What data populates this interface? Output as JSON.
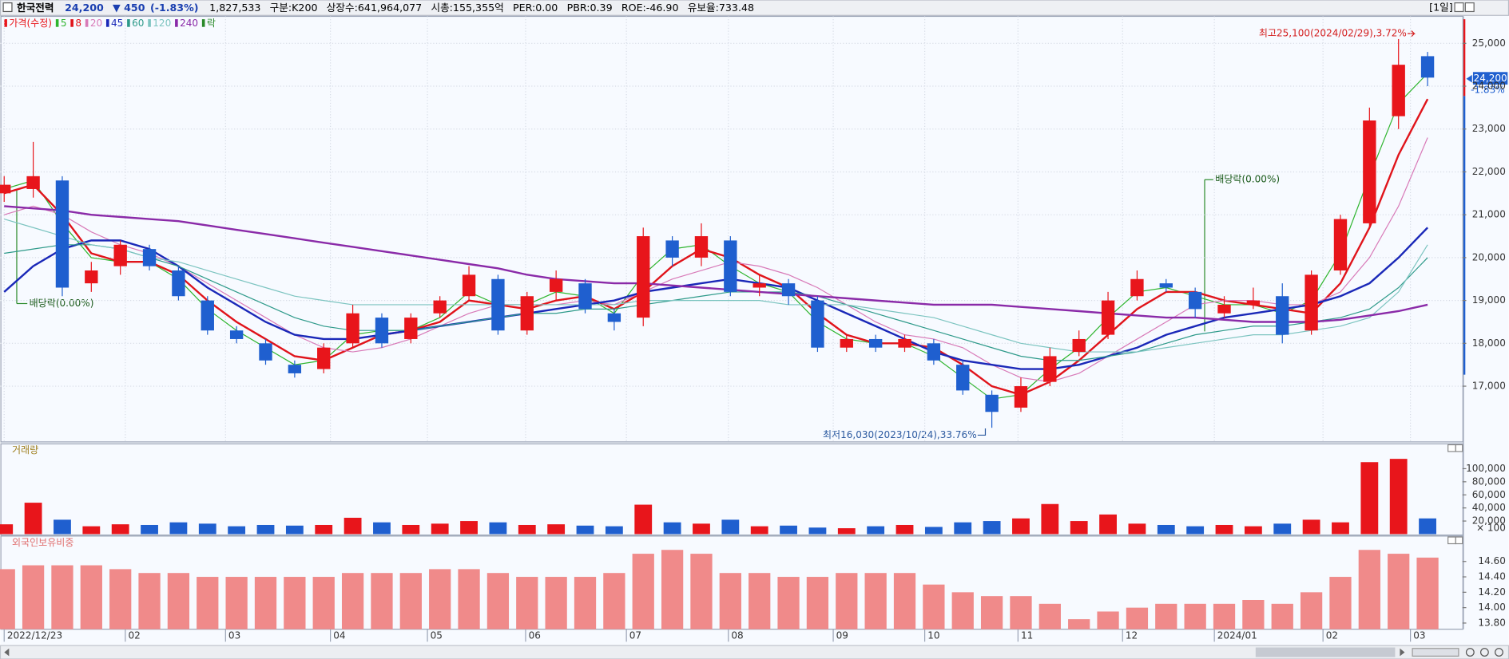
{
  "header": {
    "name": "한국전력",
    "price": "24,200",
    "change": "▼ 450",
    "change_pct": "(-1.83%)",
    "volume": "1,827,533",
    "segment": "구분:K200",
    "shares": "상장수:641,964,077",
    "market_cap": "시총:155,355억",
    "per": "PER:0.00",
    "pbr": "PBR:0.39",
    "roe": "ROE:-46.90",
    "reserve": "유보율:733.48",
    "period": "[1일]",
    "price_tag": "24,200",
    "price_tag_pct": "-1.83%"
  },
  "chart_data": [
    {
      "type": "candlestick",
      "x": [
        0,
        1,
        2,
        3,
        4,
        5,
        6,
        7,
        8,
        9,
        10,
        11,
        12,
        13,
        14,
        15,
        16,
        17,
        18,
        19,
        20,
        21,
        22,
        23,
        24,
        25,
        26,
        27,
        28,
        29,
        30,
        31,
        32,
        33,
        34,
        35,
        36,
        37,
        38,
        39,
        40,
        41,
        42,
        43,
        44,
        45,
        46,
        47,
        48,
        49
      ],
      "xlim": [
        -0.13,
        50.2
      ],
      "xticks": [
        {
          "value": 0,
          "label": "2022/12/23"
        },
        {
          "value": 4.17,
          "label": "02"
        },
        {
          "value": 7.62,
          "label": "03"
        },
        {
          "value": 11.23,
          "label": "04"
        },
        {
          "value": 14.57,
          "label": "05"
        },
        {
          "value": 17.95,
          "label": "06"
        },
        {
          "value": 21.42,
          "label": "07"
        },
        {
          "value": 24.93,
          "label": "08"
        },
        {
          "value": 28.54,
          "label": "09"
        },
        {
          "value": 31.69,
          "label": "10"
        },
        {
          "value": 34.9,
          "label": "11"
        },
        {
          "value": 38.5,
          "label": "12"
        },
        {
          "value": 41.66,
          "label": "2024/01"
        },
        {
          "value": 45.4,
          "label": "02"
        },
        {
          "value": 48.41,
          "label": "03"
        }
      ],
      "ylim": [
        15700,
        25630
      ],
      "yticks": [
        {
          "value": 17000,
          "label": "17,000"
        },
        {
          "value": 18000,
          "label": "18,000"
        },
        {
          "value": 19000,
          "label": "19,000"
        },
        {
          "value": 20000,
          "label": "20,000"
        },
        {
          "value": 21000,
          "label": "21,000"
        },
        {
          "value": 22000,
          "label": "22,000"
        },
        {
          "value": 23000,
          "label": "23,000"
        },
        {
          "value": 24000,
          "label": "24,000"
        },
        {
          "value": 25000,
          "label": "25,000"
        }
      ],
      "grid": true,
      "candles": {
        "name": "가격(수정)",
        "up_color": "#e8151b",
        "down_color": "#1f5fcf",
        "open": [
          21500,
          21600,
          21800,
          19400,
          19800,
          20200,
          19700,
          19000,
          18300,
          18000,
          17500,
          17400,
          18000,
          18600,
          18100,
          18700,
          19100,
          19500,
          18300,
          19200,
          19400,
          18700,
          18600,
          20400,
          20000,
          20400,
          19300,
          19400,
          19000,
          17900,
          18100,
          17900,
          18000,
          17500,
          16800,
          16500,
          17100,
          17800,
          18200,
          19100,
          19400,
          19200,
          18700,
          18900,
          19100,
          18300,
          19700,
          20800,
          23300,
          24700
        ],
        "high": [
          21900,
          22700,
          21900,
          19900,
          20400,
          20300,
          19800,
          19100,
          18400,
          18100,
          17600,
          18000,
          18900,
          18700,
          18700,
          19100,
          19800,
          19600,
          19200,
          19700,
          19500,
          18800,
          20700,
          20500,
          20800,
          20500,
          19600,
          19500,
          19100,
          18200,
          18200,
          18200,
          18100,
          17600,
          16900,
          17200,
          17900,
          18300,
          19200,
          19700,
          19500,
          19300,
          19100,
          19300,
          19400,
          19700,
          21000,
          23500,
          25100,
          24800
        ],
        "low": [
          21300,
          21400,
          19100,
          19200,
          19600,
          19700,
          19000,
          18200,
          18000,
          17500,
          17200,
          17300,
          17900,
          17900,
          18000,
          18600,
          19000,
          18200,
          18200,
          19000,
          18700,
          18300,
          18400,
          19800,
          19800,
          19100,
          19100,
          18900,
          17800,
          17800,
          17800,
          17800,
          17500,
          16800,
          16030,
          16400,
          17000,
          17700,
          18100,
          19000,
          19200,
          18600,
          18600,
          18800,
          18000,
          18200,
          19600,
          20700,
          23000,
          24000
        ],
        "close": [
          21700,
          21900,
          19300,
          19700,
          20300,
          19800,
          19100,
          18300,
          18100,
          17600,
          17300,
          17900,
          18700,
          18000,
          18600,
          19000,
          19600,
          18300,
          19100,
          19500,
          18800,
          18500,
          20500,
          20000,
          20500,
          19200,
          19400,
          19100,
          17900,
          18100,
          17900,
          18100,
          17600,
          16900,
          16400,
          17000,
          17700,
          18100,
          19000,
          19500,
          19300,
          18800,
          18900,
          19000,
          18200,
          19600,
          20900,
          23200,
          24500,
          24200
        ]
      },
      "series": [
        {
          "name": "5",
          "color": "#2fb52f",
          "values": [
            21600,
            21800,
            20800,
            20000,
            19900,
            19900,
            19500,
            18800,
            18300,
            17900,
            17500,
            17600,
            18200,
            18300,
            18300,
            18600,
            19200,
            18900,
            18900,
            19200,
            19100,
            18700,
            19600,
            20200,
            20300,
            19800,
            19400,
            19200,
            18500,
            18100,
            18000,
            18000,
            17700,
            17200,
            16700,
            16800,
            17400,
            17900,
            18600,
            19200,
            19300,
            19100,
            18900,
            18900,
            18700,
            19000,
            20100,
            21900,
            23600,
            24300
          ]
        },
        {
          "name": "8",
          "color": "#e0141b",
          "values": [
            21500,
            21700,
            21000,
            20100,
            19900,
            19900,
            19600,
            19000,
            18500,
            18100,
            17700,
            17600,
            17900,
            18200,
            18300,
            18500,
            19000,
            18900,
            18800,
            19000,
            19100,
            18800,
            19200,
            19800,
            20200,
            20000,
            19600,
            19300,
            18700,
            18200,
            18000,
            18000,
            17900,
            17500,
            17000,
            16800,
            17100,
            17600,
            18200,
            18800,
            19200,
            19200,
            19000,
            18900,
            18800,
            18700,
            19400,
            20700,
            22400,
            23700
          ]
        },
        {
          "name": "20",
          "color": "#d87ab8",
          "values": [
            21000,
            21200,
            21000,
            20600,
            20300,
            20100,
            19800,
            19400,
            19000,
            18600,
            18200,
            17900,
            17800,
            17900,
            18100,
            18400,
            18700,
            18900,
            18900,
            18900,
            19000,
            18900,
            19200,
            19500,
            19700,
            19900,
            19800,
            19600,
            19300,
            18900,
            18500,
            18200,
            18100,
            17900,
            17500,
            17200,
            17100,
            17300,
            17700,
            18100,
            18500,
            18900,
            19000,
            19000,
            18900,
            18900,
            19200,
            20000,
            21200,
            22800
          ]
        },
        {
          "name": "45",
          "color": "#1a28b8",
          "values": [
            19200,
            19800,
            20200,
            20400,
            20400,
            20200,
            19800,
            19300,
            18900,
            18500,
            18200,
            18100,
            18100,
            18200,
            18300,
            18400,
            18500,
            18600,
            18700,
            18800,
            18900,
            19000,
            19200,
            19300,
            19400,
            19500,
            19400,
            19300,
            19000,
            18700,
            18400,
            18100,
            17800,
            17600,
            17500,
            17400,
            17400,
            17500,
            17700,
            17900,
            18200,
            18400,
            18600,
            18700,
            18800,
            18900,
            19100,
            19400,
            20000,
            20700
          ]
        },
        {
          "name": "60",
          "color": "#2e9a8a",
          "values": [
            20100,
            20200,
            20300,
            20300,
            20200,
            20000,
            19800,
            19500,
            19200,
            18900,
            18600,
            18400,
            18300,
            18300,
            18300,
            18400,
            18500,
            18600,
            18700,
            18700,
            18800,
            18800,
            18900,
            19000,
            19100,
            19200,
            19200,
            19200,
            19100,
            18900,
            18700,
            18500,
            18300,
            18100,
            17900,
            17700,
            17600,
            17600,
            17700,
            17800,
            18000,
            18200,
            18300,
            18400,
            18400,
            18500,
            18600,
            18800,
            19300,
            20000
          ]
        },
        {
          "name": "120",
          "color": "#7cc4c0",
          "values": [
            20900,
            20700,
            20500,
            20300,
            20200,
            20000,
            19900,
            19700,
            19500,
            19300,
            19100,
            19000,
            18900,
            18900,
            18900,
            18900,
            18900,
            18900,
            18900,
            18900,
            18900,
            18900,
            19000,
            19000,
            19000,
            19000,
            19000,
            18900,
            18900,
            18900,
            18800,
            18700,
            18600,
            18400,
            18200,
            18000,
            17900,
            17800,
            17800,
            17800,
            17900,
            18000,
            18100,
            18200,
            18200,
            18300,
            18400,
            18600,
            19200,
            20300
          ]
        },
        {
          "name": "240",
          "color": "#8a2aa8",
          "values": [
            21200,
            21150,
            21100,
            21000,
            20950,
            20900,
            20850,
            20750,
            20650,
            20550,
            20450,
            20350,
            20250,
            20150,
            20050,
            19950,
            19850,
            19750,
            19600,
            19500,
            19450,
            19400,
            19400,
            19350,
            19300,
            19250,
            19200,
            19150,
            19100,
            19050,
            19000,
            18950,
            18900,
            18900,
            18900,
            18850,
            18800,
            18750,
            18700,
            18650,
            18600,
            18600,
            18550,
            18500,
            18500,
            18500,
            18550,
            18650,
            18750,
            18900
          ]
        }
      ],
      "dividend_marker": {
        "name": "락",
        "color": "#2a8a2a"
      },
      "annotations": [
        "최고25,100(2024/02/29),3.72%",
        "최저16,030(2023/10/24),33.76%",
        "배당락(0.00%)",
        "배당락(0.00%)"
      ]
    },
    {
      "type": "volume",
      "title": "거래량",
      "unit_label": "× 100",
      "x": [
        0,
        1,
        2,
        3,
        4,
        5,
        6,
        7,
        8,
        9,
        10,
        11,
        12,
        13,
        14,
        15,
        16,
        17,
        18,
        19,
        20,
        21,
        22,
        23,
        24,
        25,
        26,
        27,
        28,
        29,
        30,
        31,
        32,
        33,
        34,
        35,
        36,
        37,
        38,
        39,
        40,
        41,
        42,
        43,
        44,
        45,
        46,
        47,
        48,
        49
      ],
      "xlim": [
        -0.13,
        50.2
      ],
      "ylim": [
        0,
        138000
      ],
      "yticks": [
        {
          "value": 20000,
          "label": "20,000"
        },
        {
          "value": 40000,
          "label": "40,000"
        },
        {
          "value": 60000,
          "label": "60,000"
        },
        {
          "value": 80000,
          "label": "80,000"
        },
        {
          "value": 100000,
          "label": "100,000"
        }
      ],
      "up_color": "#e8151b",
      "down_color": "#1f5fcf",
      "values": [
        15000,
        48000,
        22000,
        12000,
        15000,
        14000,
        18000,
        16000,
        12000,
        14000,
        13000,
        14000,
        25000,
        18000,
        14000,
        16000,
        20000,
        18000,
        14000,
        15000,
        13000,
        12000,
        45000,
        18000,
        16000,
        22000,
        12000,
        13000,
        10000,
        9000,
        12000,
        14000,
        11000,
        18000,
        20000,
        24000,
        46000,
        20000,
        30000,
        16000,
        14000,
        12000,
        14000,
        12000,
        16000,
        22000,
        18000,
        110000,
        115000,
        24000
      ]
    },
    {
      "type": "bar",
      "title": "외국인보유비중",
      "color": "#f08a8a",
      "x": [
        0,
        1,
        2,
        3,
        4,
        5,
        6,
        7,
        8,
        9,
        10,
        11,
        12,
        13,
        14,
        15,
        16,
        17,
        18,
        19,
        20,
        21,
        22,
        23,
        24,
        25,
        26,
        27,
        28,
        29,
        30,
        31,
        32,
        33,
        34,
        35,
        36,
        37,
        38,
        39,
        40,
        41,
        42,
        43,
        44,
        45,
        46,
        47,
        48,
        49
      ],
      "xlim": [
        -0.13,
        50.2
      ],
      "ylim": [
        13.72,
        14.93
      ],
      "yticks": [
        {
          "value": 13.8,
          "label": "13.80"
        },
        {
          "value": 14.0,
          "label": "14.00"
        },
        {
          "value": 14.2,
          "label": "14.20"
        },
        {
          "value": 14.4,
          "label": "14.40"
        },
        {
          "value": 14.6,
          "label": "14.60"
        }
      ],
      "values": [
        14.5,
        14.55,
        14.55,
        14.55,
        14.5,
        14.45,
        14.45,
        14.4,
        14.4,
        14.4,
        14.4,
        14.4,
        14.45,
        14.45,
        14.45,
        14.5,
        14.5,
        14.45,
        14.4,
        14.4,
        14.4,
        14.45,
        14.7,
        14.75,
        14.7,
        14.45,
        14.45,
        14.4,
        14.4,
        14.45,
        14.45,
        14.45,
        14.3,
        14.2,
        14.15,
        14.15,
        14.05,
        13.85,
        13.95,
        14.0,
        14.05,
        14.05,
        14.05,
        14.1,
        14.05,
        14.2,
        14.4,
        14.75,
        14.7,
        14.65
      ]
    }
  ]
}
